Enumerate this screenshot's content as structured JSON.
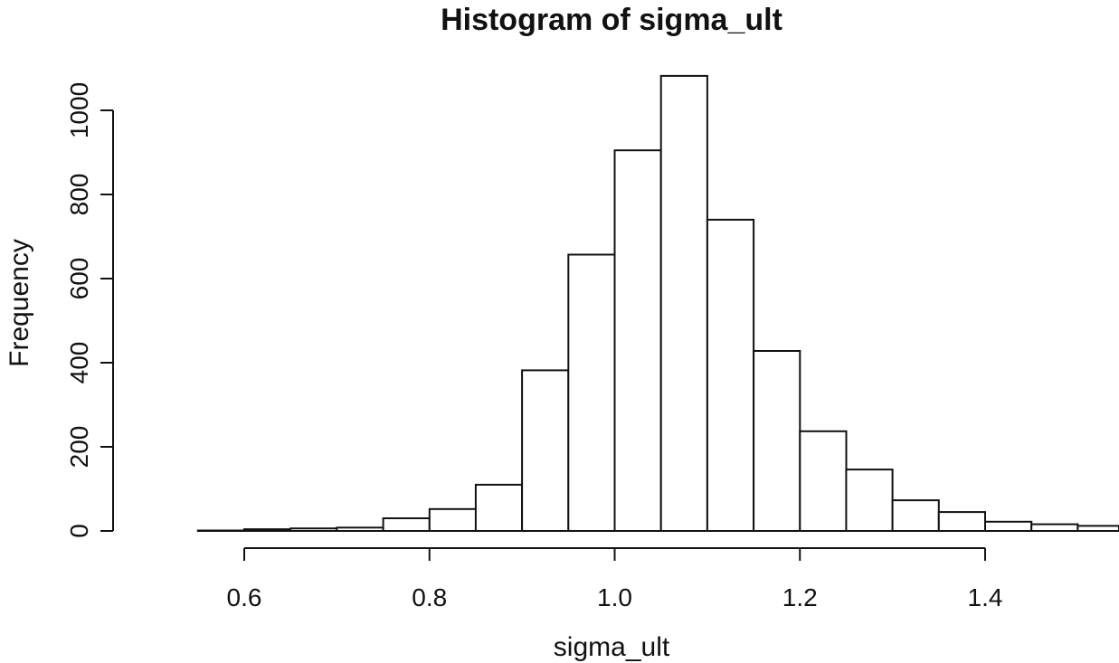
{
  "chart_data": {
    "type": "bar",
    "title": "Histogram of sigma_ult",
    "xlabel": "sigma_ult",
    "ylabel": "Frequency",
    "bin_width": 0.05,
    "bin_starts": [
      0.55,
      0.6,
      0.65,
      0.7,
      0.75,
      0.8,
      0.85,
      0.9,
      0.95,
      1.0,
      1.05,
      1.1,
      1.15,
      1.2,
      1.25,
      1.3,
      1.35,
      1.4,
      1.45,
      1.5
    ],
    "values": [
      1,
      4,
      6,
      8,
      30,
      52,
      110,
      382,
      657,
      905,
      1082,
      740,
      428,
      237,
      146,
      73,
      45,
      22,
      16,
      12
    ],
    "xlim": [
      0.55,
      1.55
    ],
    "ylim": [
      0,
      1100
    ],
    "x_ticks": [
      "0.6",
      "0.8",
      "1.0",
      "1.2",
      "1.4"
    ],
    "y_ticks": [
      "0",
      "200",
      "400",
      "600",
      "800",
      "1000"
    ],
    "grid": false
  }
}
